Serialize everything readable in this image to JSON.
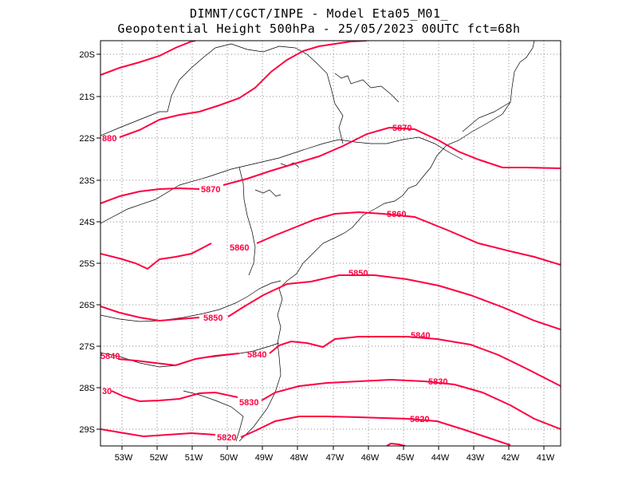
{
  "header": {
    "line1": "DIMNT/CGCT/INPE -  Model Eta05_M01_",
    "line2": "Geopotential Height 500hPa -  25/05/2023 00UTC fct=68h"
  },
  "map": {
    "lat_ticks": [
      "20S",
      "21S",
      "22S",
      "23S",
      "24S",
      "25S",
      "26S",
      "27S",
      "28S",
      "29S"
    ],
    "lon_ticks": [
      "53W",
      "52W",
      "51W",
      "50W",
      "49W",
      "48W",
      "47W",
      "46W",
      "45W",
      "44W",
      "43W",
      "42W",
      "41W"
    ],
    "contour_color": "#ff0040",
    "coast_color": "#000000",
    "grid_color": "#888888",
    "contour_labels": [
      "5870",
      "5870",
      "5860",
      "5860",
      "5850",
      "5850",
      "5840",
      "5840",
      "5830",
      "5830",
      "5820",
      "5820",
      "880",
      "30",
      "5840"
    ]
  }
}
